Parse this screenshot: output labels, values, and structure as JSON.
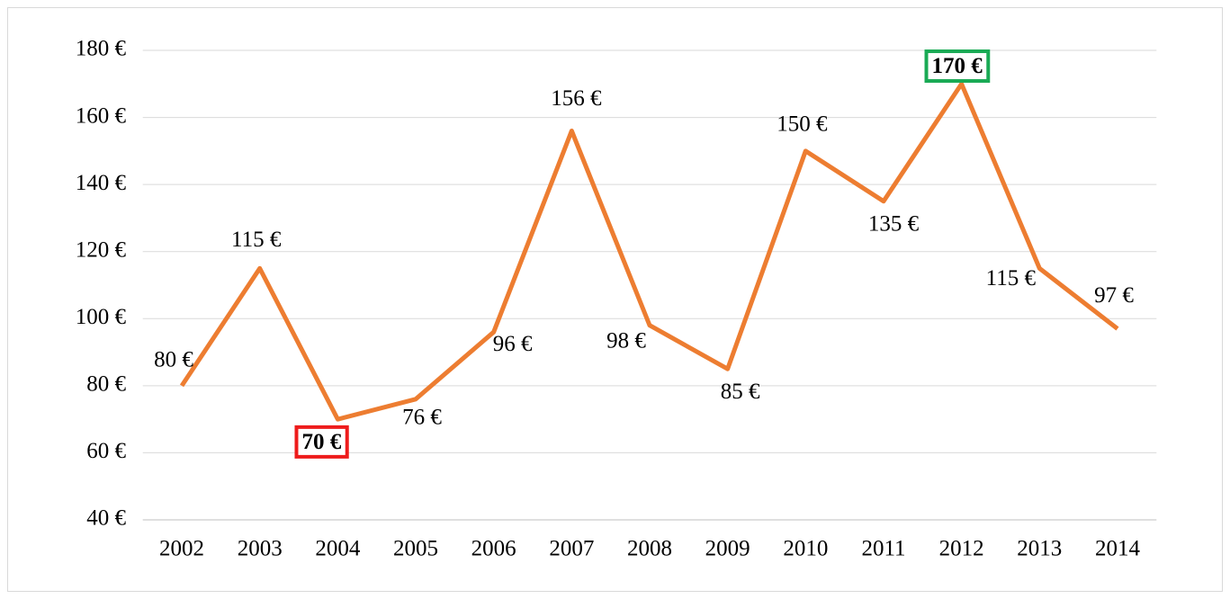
{
  "chart_data": {
    "type": "line",
    "categories": [
      "2002",
      "2003",
      "2004",
      "2005",
      "2006",
      "2007",
      "2008",
      "2009",
      "2010",
      "2011",
      "2012",
      "2013",
      "2014"
    ],
    "series": [
      {
        "color": "#ed7d31",
        "values": [
          80,
          115,
          70,
          76,
          96,
          156,
          98,
          85,
          150,
          135,
          170,
          115,
          97
        ],
        "value_labels": [
          "80 €",
          "115 €",
          "70 €",
          "76 €",
          "96 €",
          "156 €",
          "98 €",
          "85 €",
          "150 €",
          "135 €",
          "170 €",
          "115 €",
          "97 €"
        ]
      }
    ],
    "ylim": [
      40,
      180
    ],
    "yticks": [
      {
        "value": 40,
        "label": "40 €"
      },
      {
        "value": 60,
        "label": "60 €"
      },
      {
        "value": 80,
        "label": "80 €"
      },
      {
        "value": 100,
        "label": "100 €"
      },
      {
        "value": 120,
        "label": "120 €"
      },
      {
        "value": 140,
        "label": "140 €"
      },
      {
        "value": 160,
        "label": "160 €"
      },
      {
        "value": 180,
        "label": "180 €"
      }
    ],
    "grid": true,
    "min_color": "#ee1c1c",
    "max_color": "#1aaa55"
  }
}
